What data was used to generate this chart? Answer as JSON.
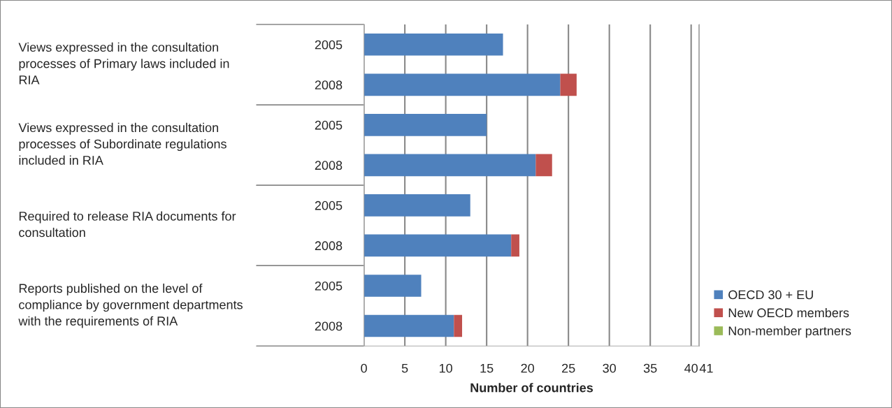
{
  "chart_data": {
    "type": "bar",
    "orientation": "horizontal",
    "stacked": true,
    "categories": [
      "2005",
      "2008",
      "2005",
      "2008",
      "2005",
      "2008",
      "2005",
      "2008"
    ],
    "series": [
      {
        "name": "OECD 30 + EU",
        "color": "#4f81bd",
        "values": [
          17,
          24,
          15,
          21,
          13,
          18,
          7,
          11
        ]
      },
      {
        "name": "New OECD members",
        "color": "#c0504d",
        "values": [
          0,
          2,
          0,
          2,
          0,
          1,
          0,
          1
        ]
      },
      {
        "name": "Non-member partners",
        "color": "#9bbb59",
        "values": [
          0,
          0,
          0,
          0,
          0,
          0,
          0,
          0
        ]
      }
    ],
    "annotations": [
      "Views expressed in the consultation\nprocesses of Primary laws included in\nRIA",
      "Views expressed in the consultation\nprocesses of Subordinate regulations\nincluded in RIA",
      "Required to release RIA documents for\nconsultation",
      "Reports published on the level of\ncompliance by government departments\nwith the requirements of RIA"
    ],
    "xlabel": "Number of countries",
    "xlim": [
      0,
      41
    ],
    "xticks": [
      0,
      5,
      10,
      15,
      20,
      25,
      30,
      35,
      40,
      41
    ],
    "grid": "x",
    "legend": "right"
  }
}
